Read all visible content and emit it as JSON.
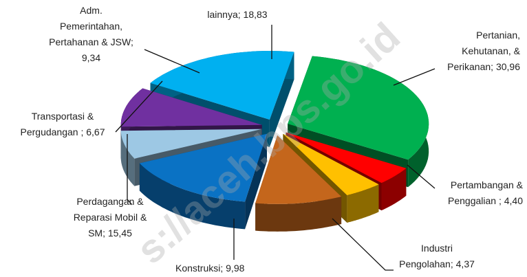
{
  "chart_data": {
    "type": "pie3d",
    "categories": [
      "Pertanian,\nKehutanan, &\nPerikanan;",
      "Pertambangan &\nPenggalian ;",
      "Industri\nPengolahan;",
      "Konstruksi;",
      "Perdagangan &\nReparasi Mobil &\nSM;",
      "Transportasi &\nPergudangan ;",
      "Adm.\nPemerintahan,\nPertahanan & JSW;",
      "lainnya;"
    ],
    "values": [
      30.96,
      4.4,
      4.37,
      9.98,
      15.45,
      6.67,
      9.34,
      18.83
    ],
    "value_labels": [
      "30,96",
      "4,40",
      "4,37",
      "9,98",
      "15,45",
      "6,67",
      "9,34",
      "18,83"
    ],
    "colors": [
      "#00b050",
      "#ff0000",
      "#ffc000",
      "#c4661c",
      "#0a72c4",
      "#9dc8e4",
      "#7030a0",
      "#00b0f0"
    ],
    "watermark": "s://aceh.bps.go.id"
  }
}
